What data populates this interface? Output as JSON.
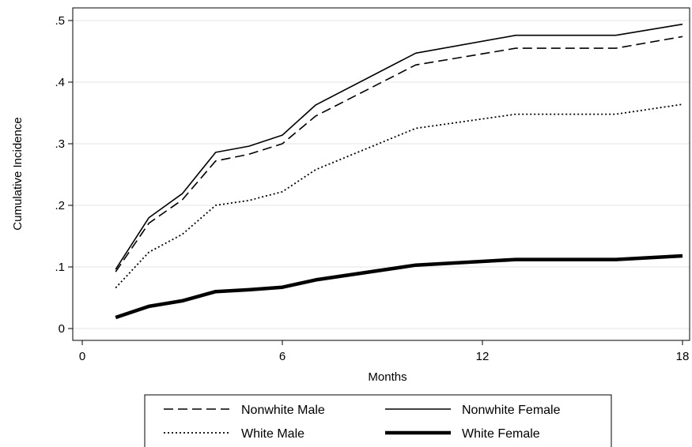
{
  "chart_data": {
    "type": "line",
    "title": "",
    "xlabel": "Months",
    "ylabel": "Cumulative Incidence",
    "xlim": [
      0,
      18
    ],
    "ylim": [
      0,
      0.5
    ],
    "x_ticks": [
      0,
      6,
      12,
      18
    ],
    "x_tick_labels": [
      "0",
      "6",
      "12",
      "18"
    ],
    "y_ticks": [
      0,
      0.1,
      0.2,
      0.3,
      0.4,
      0.5
    ],
    "y_tick_labels": [
      "0",
      ".1",
      ".2",
      ".3",
      ".4",
      ".5"
    ],
    "grid": true,
    "legend_position": "bottom",
    "series": [
      {
        "name": "Nonwhite Male",
        "style": "dashed",
        "color": "#000000",
        "x": [
          1,
          2,
          3,
          4,
          5,
          6,
          7,
          10,
          13,
          16,
          18
        ],
        "y": [
          0.092,
          0.171,
          0.209,
          0.272,
          0.283,
          0.3,
          0.345,
          0.428,
          0.455,
          0.455,
          0.474
        ]
      },
      {
        "name": "Nonwhite Female",
        "style": "solid",
        "color": "#000000",
        "x": [
          1,
          2,
          3,
          4,
          5,
          6,
          7,
          10,
          13,
          16,
          18
        ],
        "y": [
          0.096,
          0.18,
          0.219,
          0.286,
          0.296,
          0.314,
          0.363,
          0.447,
          0.476,
          0.476,
          0.494
        ]
      },
      {
        "name": "White Male",
        "style": "dotted",
        "color": "#000000",
        "x": [
          1,
          2,
          3,
          4,
          5,
          6,
          7,
          10,
          13,
          16,
          18
        ],
        "y": [
          0.066,
          0.124,
          0.153,
          0.2,
          0.208,
          0.222,
          0.258,
          0.325,
          0.348,
          0.348,
          0.364
        ]
      },
      {
        "name": "White Female",
        "style": "thick",
        "color": "#000000",
        "x": [
          1,
          2,
          3,
          4,
          5,
          6,
          7,
          10,
          13,
          16,
          18
        ],
        "y": [
          0.018,
          0.036,
          0.045,
          0.06,
          0.063,
          0.067,
          0.079,
          0.103,
          0.112,
          0.112,
          0.118
        ]
      }
    ]
  }
}
